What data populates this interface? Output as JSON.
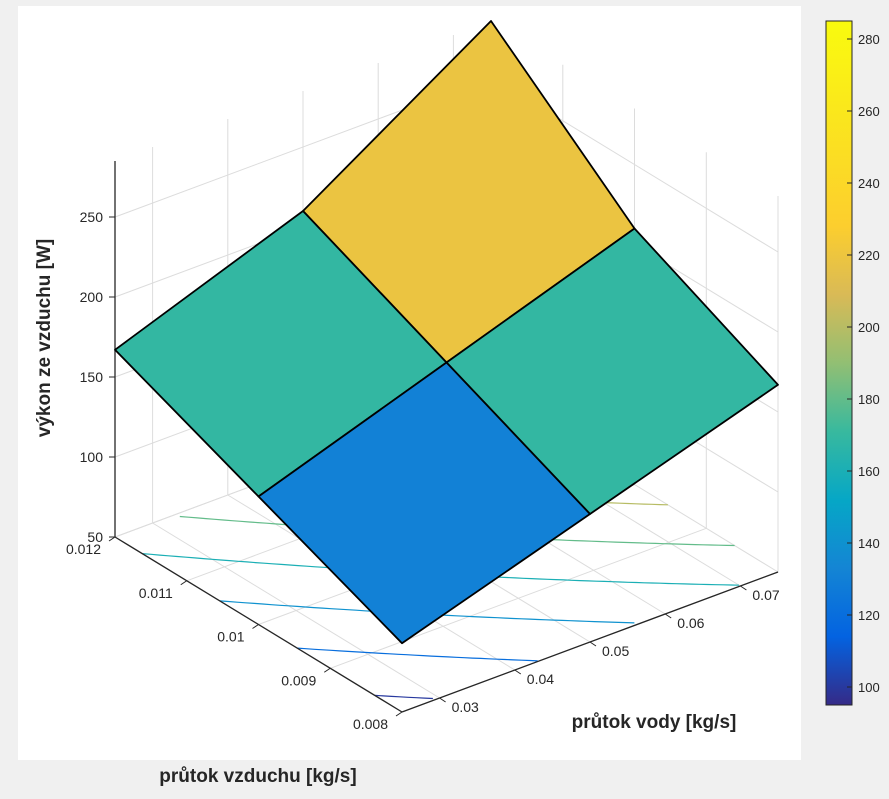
{
  "chart_data": {
    "type": "surface3d",
    "title": "",
    "xlabel": "průtok vody [kg/s]",
    "ylabel": "průtok vzduchu [kg/s]",
    "zlabel": "výkon ze vzduchu [W]",
    "x": [
      0.025,
      0.05,
      0.075
    ],
    "y": [
      0.008,
      0.01,
      0.012
    ],
    "z": [
      [
        93,
        130,
        167
      ],
      [
        130,
        170,
        210
      ],
      [
        167,
        210,
        285
      ]
    ],
    "xlim": [
      0.025,
      0.075
    ],
    "ylim": [
      0.008,
      0.012
    ],
    "zlim": [
      50,
      285
    ],
    "xticks": [
      "0.03",
      "0.04",
      "0.05",
      "0.06",
      "0.07"
    ],
    "yticks": [
      "0.008",
      "0.009",
      "0.01",
      "0.011",
      "0.012"
    ],
    "zticks": [
      "50",
      "100",
      "150",
      "200",
      "250"
    ],
    "colorbar": {
      "limits": [
        95,
        285
      ],
      "ticks": [
        "100",
        "120",
        "140",
        "160",
        "180",
        "200",
        "220",
        "240",
        "260",
        "280"
      ],
      "colormap": "parula"
    },
    "contour_levels": [
      100,
      120,
      140,
      160,
      180,
      200,
      220,
      240,
      260,
      280
    ],
    "grid": true,
    "edge_color": "#000000",
    "background": "#ffffff"
  }
}
